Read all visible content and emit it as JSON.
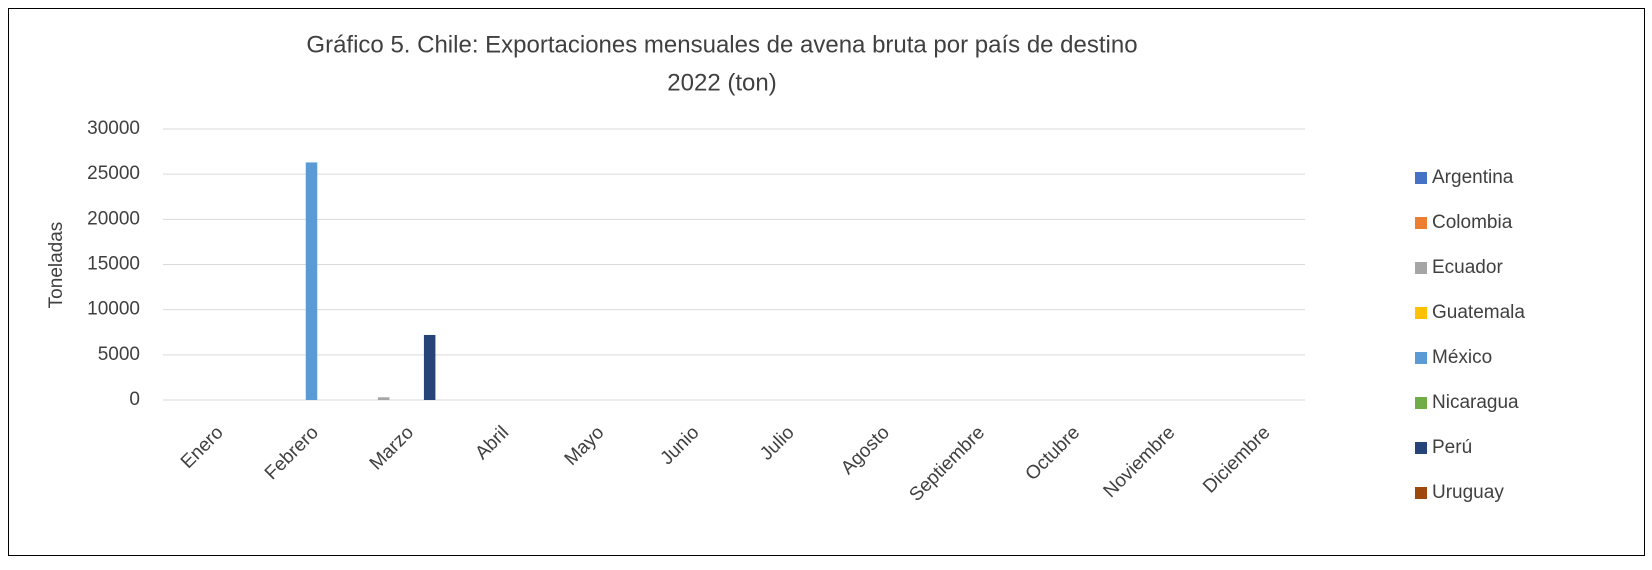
{
  "chart_data": {
    "type": "bar",
    "title": "Gráfico 5. Chile: Exportaciones mensuales de avena bruta por país de destino",
    "subtitle": "2022 (ton)",
    "y_label": "Toneladas",
    "categories": [
      "Enero",
      "Febrero",
      "Marzo",
      "Abril",
      "Mayo",
      "Junio",
      "Julio",
      "Agosto",
      "Septiembre",
      "Octubre",
      "Noviembre",
      "Diciembre"
    ],
    "series": [
      {
        "name": "Argentina",
        "color": "#4472c4",
        "values": [
          null,
          null,
          null,
          null,
          null,
          null,
          null,
          null,
          null,
          null,
          null,
          null
        ]
      },
      {
        "name": "Colombia",
        "color": "#ed7d31",
        "values": [
          null,
          null,
          null,
          null,
          null,
          null,
          null,
          null,
          null,
          null,
          null,
          null
        ]
      },
      {
        "name": "Ecuador",
        "color": "#a5a5a5",
        "values": [
          null,
          null,
          300,
          null,
          null,
          null,
          null,
          null,
          null,
          null,
          null,
          null
        ]
      },
      {
        "name": "Guatemala",
        "color": "#ffc000",
        "values": [
          null,
          null,
          null,
          null,
          null,
          null,
          null,
          null,
          null,
          null,
          null,
          null
        ]
      },
      {
        "name": "México",
        "color": "#5b9bd5",
        "values": [
          null,
          26300,
          null,
          null,
          null,
          null,
          null,
          null,
          null,
          null,
          null,
          null
        ]
      },
      {
        "name": "Nicaragua",
        "color": "#70ad47",
        "values": [
          null,
          null,
          null,
          null,
          null,
          null,
          null,
          null,
          null,
          null,
          null,
          null
        ]
      },
      {
        "name": "Perú",
        "color": "#264478",
        "values": [
          null,
          null,
          7200,
          null,
          null,
          null,
          null,
          null,
          null,
          null,
          null,
          null
        ]
      },
      {
        "name": "Uruguay",
        "color": "#9e480e",
        "values": [
          null,
          null,
          null,
          null,
          null,
          null,
          null,
          null,
          null,
          null,
          null,
          null
        ]
      }
    ],
    "ylim": [
      0,
      30000
    ],
    "yticks": [
      0,
      5000,
      10000,
      15000,
      20000,
      25000,
      30000
    ],
    "grid": true,
    "legend": "right"
  }
}
